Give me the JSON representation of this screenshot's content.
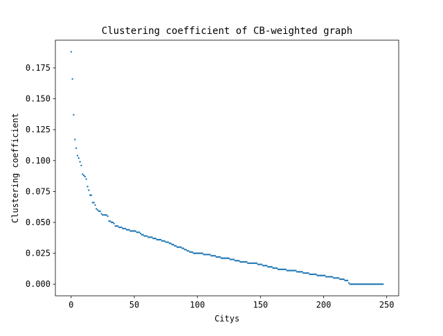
{
  "chart_data": {
    "type": "scatter",
    "title": "Clustering coefficient of CB-weighted graph",
    "xlabel": "Citys",
    "ylabel": "Clustering coefficient",
    "xlim": [
      -12.5,
      259.5
    ],
    "ylim": [
      -0.0094,
      0.1974
    ],
    "xticks": [
      0,
      50,
      100,
      150,
      200,
      250
    ],
    "xtick_labels": [
      "0",
      "50",
      "100",
      "150",
      "200",
      "250"
    ],
    "yticks": [
      0.0,
      0.025,
      0.05,
      0.075,
      0.1,
      0.125,
      0.15,
      0.175
    ],
    "ytick_labels": [
      "0.000",
      "0.025",
      "0.050",
      "0.075",
      "0.100",
      "0.125",
      "0.150",
      "0.175"
    ],
    "grid": false,
    "marker_color": "#1f77b4",
    "series": [
      {
        "x": [
          0,
          1,
          2,
          3,
          4,
          5,
          6,
          7,
          8,
          9,
          10,
          11,
          12,
          13,
          14,
          15,
          16,
          17,
          18,
          19,
          20,
          21,
          22,
          23,
          24,
          25,
          26,
          27,
          28,
          29,
          30,
          31,
          32,
          33,
          34,
          35,
          36,
          37,
          38,
          39,
          40,
          41,
          42,
          43,
          44,
          45,
          46,
          47,
          48,
          49,
          50,
          51,
          52,
          53,
          54,
          55,
          56,
          57,
          58,
          59,
          60,
          61,
          62,
          63,
          64,
          65,
          66,
          67,
          68,
          69,
          70,
          71,
          72,
          73,
          74,
          75,
          76,
          77,
          78,
          79,
          80,
          81,
          82,
          83,
          84,
          85,
          86,
          87,
          88,
          89,
          90,
          91,
          92,
          93,
          94,
          95,
          96,
          97,
          98,
          99,
          100,
          101,
          102,
          103,
          104,
          105,
          106,
          107,
          108,
          109,
          110,
          111,
          112,
          113,
          114,
          115,
          116,
          117,
          118,
          119,
          120,
          121,
          122,
          123,
          124,
          125,
          126,
          127,
          128,
          129,
          130,
          131,
          132,
          133,
          134,
          135,
          136,
          137,
          138,
          139,
          140,
          141,
          142,
          143,
          144,
          145,
          146,
          147,
          148,
          149,
          150,
          151,
          152,
          153,
          154,
          155,
          156,
          157,
          158,
          159,
          160,
          161,
          162,
          163,
          164,
          165,
          166,
          167,
          168,
          169,
          170,
          171,
          172,
          173,
          174,
          175,
          176,
          177,
          178,
          179,
          180,
          181,
          182,
          183,
          184,
          185,
          186,
          187,
          188,
          189,
          190,
          191,
          192,
          193,
          194,
          195,
          196,
          197,
          198,
          199,
          200,
          201,
          202,
          203,
          204,
          205,
          206,
          207,
          208,
          209,
          210,
          211,
          212,
          213,
          214,
          215,
          216,
          217,
          218,
          219,
          220,
          221,
          222,
          223,
          224,
          225,
          226,
          227,
          228,
          229,
          230,
          231,
          232,
          233,
          234,
          235,
          236,
          237,
          238,
          239,
          240,
          241,
          242,
          243,
          244,
          245,
          246,
          247
        ],
        "y": [
          0.188,
          0.166,
          0.137,
          0.117,
          0.11,
          0.104,
          0.102,
          0.099,
          0.096,
          0.089,
          0.088,
          0.087,
          0.085,
          0.079,
          0.076,
          0.072,
          0.072,
          0.066,
          0.066,
          0.064,
          0.061,
          0.06,
          0.059,
          0.059,
          0.057,
          0.056,
          0.056,
          0.056,
          0.056,
          0.055,
          0.051,
          0.051,
          0.05,
          0.05,
          0.049,
          0.047,
          0.047,
          0.047,
          0.046,
          0.046,
          0.046,
          0.045,
          0.045,
          0.045,
          0.044,
          0.044,
          0.044,
          0.043,
          0.043,
          0.043,
          0.043,
          0.043,
          0.042,
          0.042,
          0.042,
          0.041,
          0.04,
          0.04,
          0.039,
          0.039,
          0.039,
          0.038,
          0.038,
          0.038,
          0.038,
          0.037,
          0.037,
          0.037,
          0.036,
          0.036,
          0.036,
          0.036,
          0.035,
          0.035,
          0.035,
          0.034,
          0.034,
          0.034,
          0.033,
          0.033,
          0.032,
          0.032,
          0.031,
          0.031,
          0.03,
          0.03,
          0.03,
          0.03,
          0.029,
          0.029,
          0.028,
          0.028,
          0.027,
          0.027,
          0.026,
          0.026,
          0.026,
          0.025,
          0.025,
          0.025,
          0.025,
          0.025,
          0.025,
          0.025,
          0.025,
          0.024,
          0.024,
          0.024,
          0.024,
          0.024,
          0.024,
          0.023,
          0.023,
          0.023,
          0.023,
          0.022,
          0.022,
          0.022,
          0.022,
          0.021,
          0.021,
          0.021,
          0.021,
          0.021,
          0.021,
          0.021,
          0.02,
          0.02,
          0.02,
          0.02,
          0.019,
          0.019,
          0.019,
          0.019,
          0.018,
          0.018,
          0.018,
          0.018,
          0.018,
          0.018,
          0.017,
          0.017,
          0.017,
          0.017,
          0.017,
          0.017,
          0.017,
          0.017,
          0.016,
          0.016,
          0.016,
          0.016,
          0.015,
          0.015,
          0.015,
          0.015,
          0.014,
          0.014,
          0.014,
          0.014,
          0.013,
          0.013,
          0.013,
          0.013,
          0.012,
          0.012,
          0.012,
          0.012,
          0.012,
          0.012,
          0.012,
          0.011,
          0.011,
          0.011,
          0.011,
          0.011,
          0.011,
          0.011,
          0.011,
          0.01,
          0.01,
          0.01,
          0.01,
          0.01,
          0.009,
          0.009,
          0.009,
          0.009,
          0.009,
          0.008,
          0.008,
          0.008,
          0.008,
          0.008,
          0.008,
          0.007,
          0.007,
          0.007,
          0.007,
          0.007,
          0.007,
          0.007,
          0.006,
          0.006,
          0.006,
          0.006,
          0.006,
          0.006,
          0.005,
          0.005,
          0.005,
          0.005,
          0.005,
          0.004,
          0.004,
          0.004,
          0.004,
          0.003,
          0.003,
          0.003,
          0.001,
          0.0,
          0.0,
          0.0,
          0.0,
          0.0,
          0.0,
          0.0,
          0.0,
          0.0,
          0.0,
          0.0,
          0.0,
          0.0,
          0.0,
          0.0,
          0.0,
          0.0,
          0.0,
          0.0,
          0.0,
          0.0,
          0.0,
          0.0,
          0.0,
          0.0,
          0.0,
          0.0
        ]
      }
    ]
  }
}
